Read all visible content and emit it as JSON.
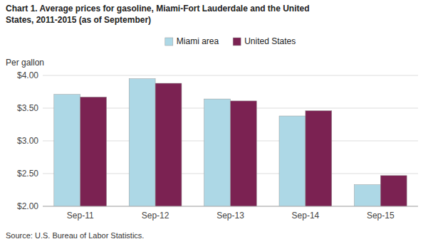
{
  "chart_data": {
    "type": "bar",
    "title": "Chart 1. Average prices for gasoline, Miami-Fort Lauderdale and the United",
    "subtitle": "States, 2011-2015 (as of September)",
    "ylabel": "Per gallon",
    "source": "Source: U.S. Bureau of Labor Statistics.",
    "categories": [
      "Sep-11",
      "Sep-12",
      "Sep-13",
      "Sep-14",
      "Sep-15"
    ],
    "series": [
      {
        "name": "Miami area",
        "color": "#ADD8E6",
        "values": [
          3.71,
          3.95,
          3.64,
          3.38,
          2.33
        ]
      },
      {
        "name": "United States",
        "color": "#7B2252",
        "values": [
          3.67,
          3.88,
          3.61,
          3.46,
          2.47
        ]
      }
    ],
    "ylim": [
      2.0,
      4.0
    ],
    "yticks": [
      {
        "value": 2.0,
        "label": "$2.00"
      },
      {
        "value": 2.5,
        "label": "$2.50"
      },
      {
        "value": 3.0,
        "label": "$3.00"
      },
      {
        "value": 3.5,
        "label": "$3.50"
      },
      {
        "value": 4.0,
        "label": "$4.00"
      }
    ],
    "grid": true,
    "legend": "top"
  }
}
